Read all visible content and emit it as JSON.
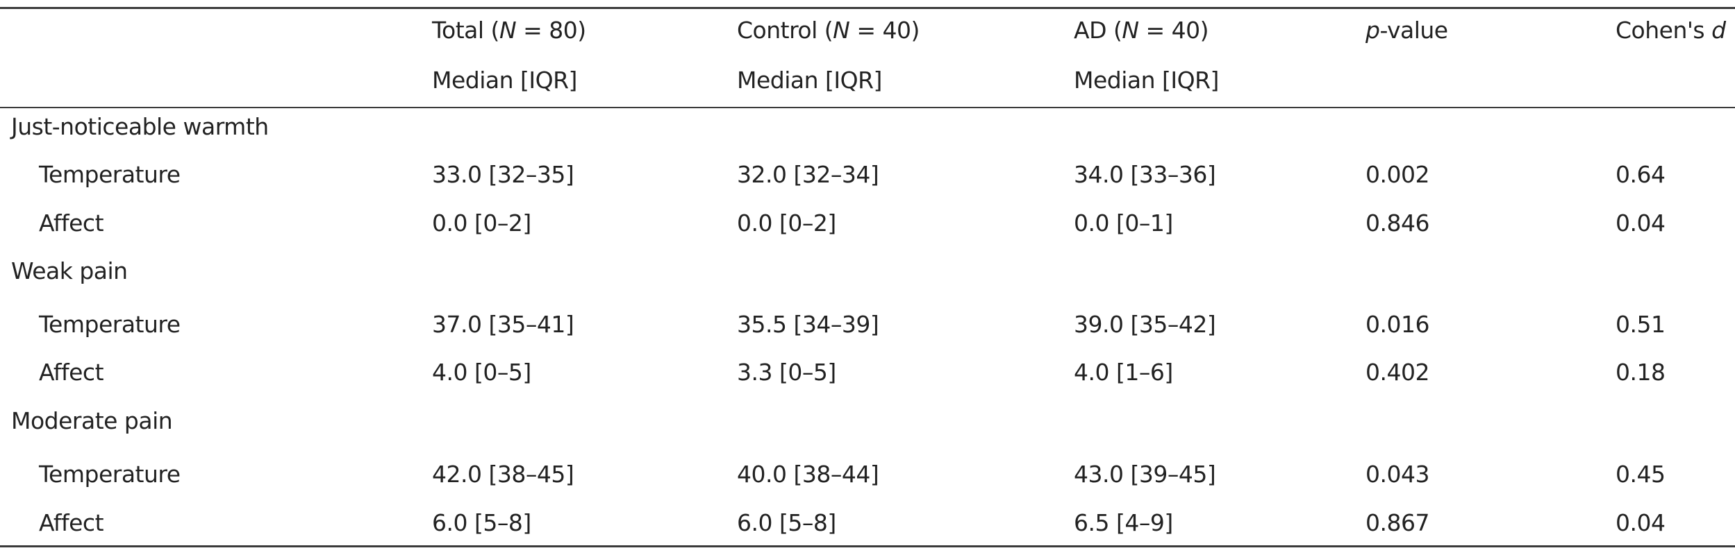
{
  "table": {
    "headers": {
      "total": {
        "prefix": "Total (",
        "n": "N",
        "suffix": " = 80)",
        "sub": "Median [IQR]"
      },
      "control": {
        "prefix": "Control (",
        "n": "N",
        "suffix": " = 40)",
        "sub": "Median [IQR]"
      },
      "ad": {
        "prefix": "AD (",
        "n": "N",
        "suffix": " = 40)",
        "sub": "Median [IQR]"
      },
      "pvalue": {
        "p": "p",
        "rest": "-value"
      },
      "cohen": {
        "prefix": "Cohen's ",
        "d": "d"
      }
    },
    "sections": [
      {
        "title": "Just-noticeable warmth",
        "rows": [
          {
            "label": "Temperature",
            "total": "33.0 [32–35]",
            "control": "32.0 [32–34]",
            "ad": "34.0 [33–36]",
            "p": "0.002",
            "d": "0.64"
          },
          {
            "label": "Affect",
            "total": "0.0 [0–2]",
            "control": "0.0 [0–2]",
            "ad": "0.0 [0–1]",
            "p": "0.846",
            "d": "0.04"
          }
        ]
      },
      {
        "title": "Weak pain",
        "rows": [
          {
            "label": "Temperature",
            "total": "37.0 [35–41]",
            "control": "35.5 [34–39]",
            "ad": "39.0 [35–42]",
            "p": "0.016",
            "d": "0.51"
          },
          {
            "label": "Affect",
            "total": "4.0 [0–5]",
            "control": "3.3 [0–5]",
            "ad": "4.0 [1–6]",
            "p": "0.402",
            "d": "0.18"
          }
        ]
      },
      {
        "title": "Moderate pain",
        "rows": [
          {
            "label": "Temperature",
            "total": "42.0 [38–45]",
            "control": "40.0 [38–44]",
            "ad": "43.0 [39–45]",
            "p": "0.043",
            "d": "0.45"
          },
          {
            "label": "Affect",
            "total": "6.0 [5–8]",
            "control": "6.0 [5–8]",
            "ad": "6.5 [4–9]",
            "p": "0.867",
            "d": "0.04"
          }
        ]
      }
    ]
  }
}
